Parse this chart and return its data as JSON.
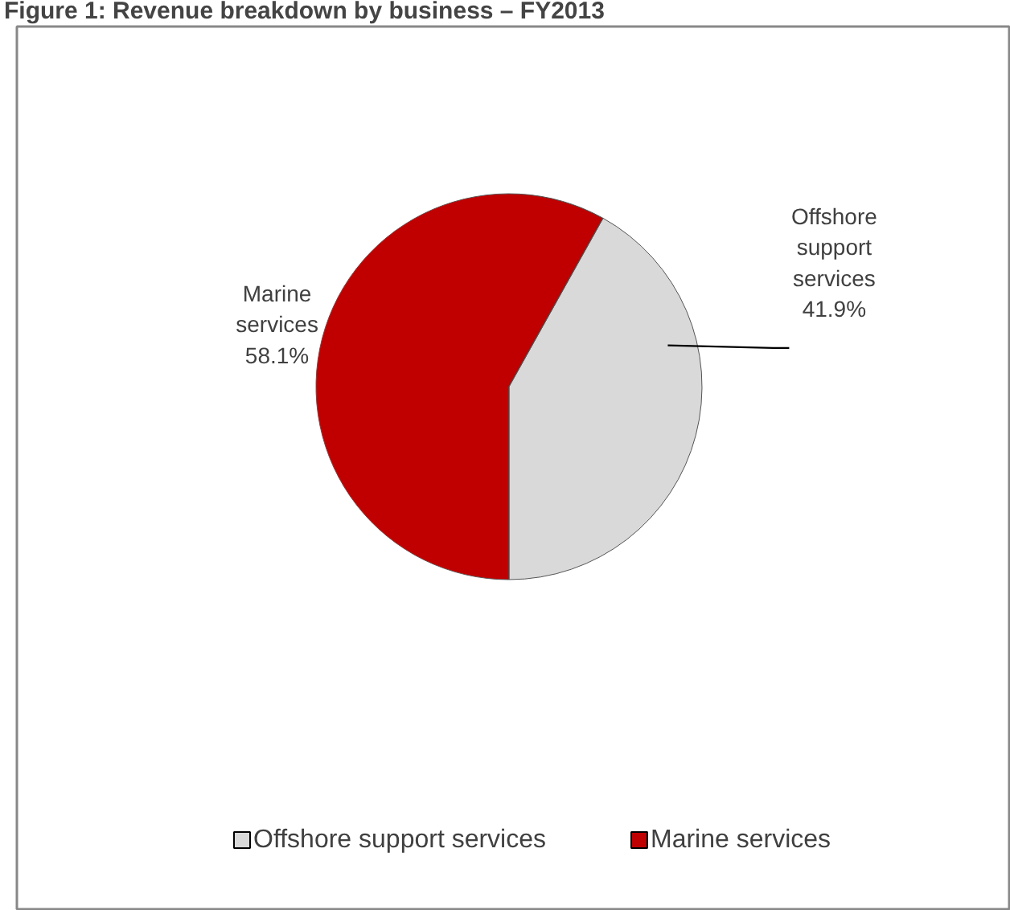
{
  "chart_data": {
    "type": "pie",
    "title": "Figure 1: Revenue breakdown by business – FY2013",
    "categories": [
      "Offshore support services",
      "Marine services"
    ],
    "values": [
      41.9,
      58.1
    ],
    "colors": [
      "#d9d9d9",
      "#c00000"
    ],
    "value_labels": [
      "41.9%",
      "58.1%"
    ],
    "legend": "bottom"
  }
}
